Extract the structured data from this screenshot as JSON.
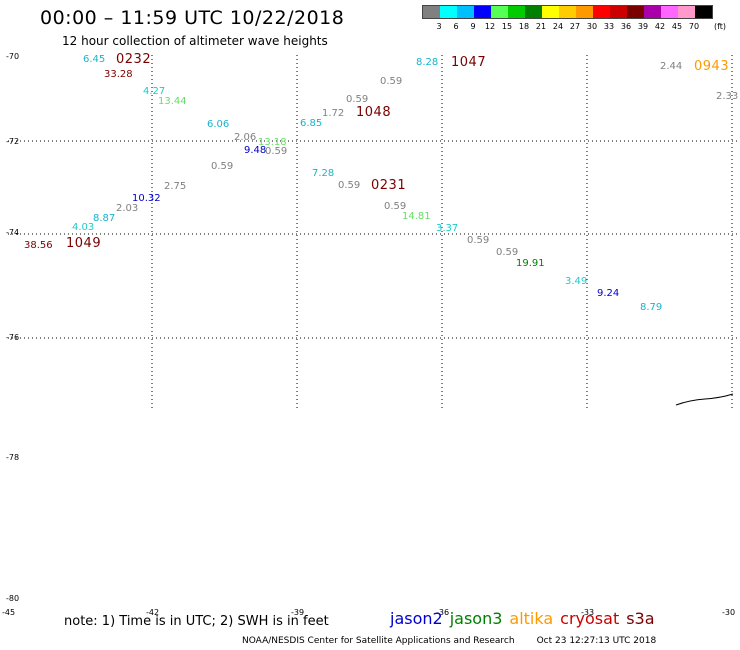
{
  "header": {
    "title": "00:00 – 11:59 UTC 10/22/2018",
    "subtitle": "12 hour collection of altimeter wave heights"
  },
  "legend": {
    "colors": [
      "#808080",
      "#00ffff",
      "#00bfff",
      "#0000ff",
      "#55ff55",
      "#00cc00",
      "#008000",
      "#ffff00",
      "#ffcc00",
      "#ff9900",
      "#ff0000",
      "#cc0000",
      "#7a0000",
      "#aa00aa",
      "#ff66ff",
      "#ff99cc",
      "#000000"
    ],
    "labels": [
      "3",
      "6",
      "9",
      "12",
      "15",
      "18",
      "21",
      "24",
      "27",
      "30",
      "33",
      "36",
      "39",
      "42",
      "45",
      "70"
    ],
    "unit": "(ft)"
  },
  "axes": {
    "lat_labels": [
      "-70",
      "-72",
      "-74",
      "-76",
      "-78",
      "-80"
    ],
    "lon_labels": [
      "-45",
      "-42",
      "-39",
      "-36",
      "-33",
      "-30"
    ]
  },
  "wave_values": [
    {
      "text": "6.45",
      "color": "#19b3cc"
    },
    {
      "text": "33.28",
      "color": "#7a0000"
    },
    {
      "text": "4.27",
      "color": "#19cccc"
    },
    {
      "text": "13.44",
      "color": "#66e066"
    },
    {
      "text": "6.06",
      "color": "#19b3cc"
    },
    {
      "text": "2.06",
      "color": "#808080"
    },
    {
      "text": "13.18",
      "color": "#66e066"
    },
    {
      "text": "9.48",
      "color": "#0000cc"
    },
    {
      "text": "0.59",
      "color": "#808080"
    },
    {
      "text": "0.59",
      "color": "#808080"
    },
    {
      "text": "2.75",
      "color": "#808080"
    },
    {
      "text": "10.32",
      "color": "#0000cc"
    },
    {
      "text": "2.03",
      "color": "#808080"
    },
    {
      "text": "8.87",
      "color": "#19b3cc"
    },
    {
      "text": "4.03",
      "color": "#19cccc"
    },
    {
      "text": "38.56",
      "color": "#7a0000"
    },
    {
      "text": "8.28",
      "color": "#19b3cc"
    },
    {
      "text": "0.59",
      "color": "#808080"
    },
    {
      "text": "0.59",
      "color": "#808080"
    },
    {
      "text": "1.72",
      "color": "#808080"
    },
    {
      "text": "6.85",
      "color": "#19b3cc"
    },
    {
      "text": "7.28",
      "color": "#19b3cc"
    },
    {
      "text": "0.59",
      "color": "#808080"
    },
    {
      "text": "0.59",
      "color": "#808080"
    },
    {
      "text": "14.81",
      "color": "#66e066"
    },
    {
      "text": "3.37",
      "color": "#19cccc"
    },
    {
      "text": "0.59",
      "color": "#808080"
    },
    {
      "text": "0.59",
      "color": "#808080"
    },
    {
      "text": "19.91",
      "color": "#008000"
    },
    {
      "text": "3.49",
      "color": "#19cccc"
    },
    {
      "text": "9.24",
      "color": "#0000cc"
    },
    {
      "text": "8.79",
      "color": "#19b3cc"
    },
    {
      "text": "2.44",
      "color": "#808080"
    },
    {
      "text": "2.33",
      "color": "#808080"
    }
  ],
  "pass_times": [
    {
      "text": "0232",
      "color": "#7a0000"
    },
    {
      "text": "1049",
      "color": "#7a0000"
    },
    {
      "text": "1047",
      "color": "#7a0000"
    },
    {
      "text": "1048",
      "color": "#7a0000"
    },
    {
      "text": "0231",
      "color": "#7a0000"
    },
    {
      "text": "0943",
      "color": "#ff9900"
    }
  ],
  "footer": {
    "note": "note: 1) Time is in UTC; 2) SWH is in feet",
    "satellites": [
      {
        "name": "jason2",
        "color": "#0000cc"
      },
      {
        "name": "jason3",
        "color": "#008000"
      },
      {
        "name": "altika",
        "color": "#ff9900"
      },
      {
        "name": "cryosat",
        "color": "#cc0000"
      },
      {
        "name": "s3a",
        "color": "#7a0000"
      }
    ],
    "credit": "NOAA/NESDIS Center for Satellite Applications and Research",
    "generated": "Oct 23 12:27:13 UTC 2018"
  }
}
